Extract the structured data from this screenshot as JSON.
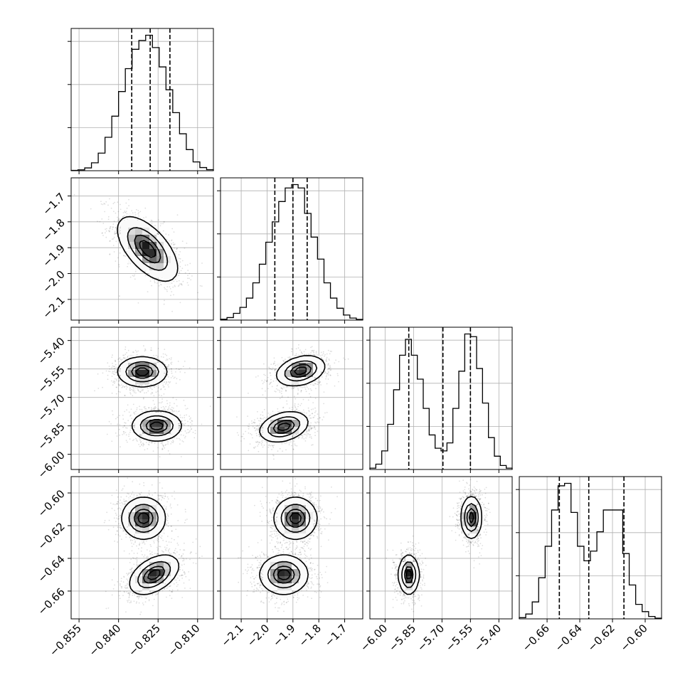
{
  "chart_data": {
    "type": "corner",
    "grid": true,
    "params": [
      {
        "range": [
          -0.858,
          -0.804
        ],
        "ticks": [
          -0.855,
          -0.84,
          -0.825,
          -0.81
        ],
        "tick_labels": [
          "−0.855",
          "−0.840",
          "−0.825",
          "−0.810"
        ],
        "quantiles": [
          -0.835,
          -0.828,
          -0.8205
        ],
        "hist": [
          0.2,
          0.5,
          1.6,
          4.5,
          10,
          19,
          31,
          45,
          58,
          69,
          74,
          77,
          70,
          59,
          46,
          33,
          21,
          12,
          5,
          1.8,
          0.6
        ]
      },
      {
        "range": [
          -2.18,
          -1.63
        ],
        "ticks": [
          -2.1,
          -2.0,
          -1.9,
          -1.8,
          -1.7
        ],
        "tick_labels": [
          "−2.1",
          "−2.0",
          "−1.9",
          "−1.8",
          "−1.7"
        ],
        "quantiles": [
          -1.97,
          -1.9,
          -1.845
        ],
        "hist": [
          0.5,
          1.5,
          4,
          7.5,
          13,
          22,
          33,
          46,
          58,
          70,
          78,
          80,
          78,
          63,
          49,
          36,
          22,
          13,
          7,
          3,
          1.2,
          0.4
        ]
      },
      {
        "range": [
          -6.08,
          -5.33
        ],
        "ticks": [
          -6.0,
          -5.85,
          -5.7,
          -5.55,
          -5.4
        ],
        "tick_labels": [
          "−6.00",
          "−5.85",
          "−5.70",
          "−5.55",
          "−5.40"
        ],
        "quantiles": [
          -5.875,
          -5.695,
          -5.55
        ],
        "hist": [
          0.5,
          2,
          7,
          17,
          30,
          43,
          49,
          43,
          34,
          23,
          13,
          8,
          7,
          10,
          23,
          37,
          51,
          50,
          38,
          25,
          12,
          5,
          1.5,
          0.5
        ]
      },
      {
        "range": [
          -0.677,
          -0.59
        ],
        "ticks": [
          -0.66,
          -0.64,
          -0.62,
          -0.6
        ],
        "tick_labels": [
          "−0.66",
          "−0.64",
          "−0.62",
          "−0.60"
        ],
        "quantiles": [
          -0.6525,
          -0.6345,
          -0.613
        ],
        "hist": [
          0.5,
          2,
          7,
          17,
          30,
          45,
          55,
          56,
          44,
          30,
          24,
          28,
          36,
          45,
          45,
          45,
          27,
          14,
          6,
          3,
          1,
          0.3
        ]
      }
    ],
    "pairs": [
      {
        "row": 1,
        "col": 0,
        "components": [
          {
            "mean": [
              -0.829,
              -1.905
            ],
            "sd": [
              0.0055,
              0.06
            ],
            "corr": -0.6,
            "w": 1.0
          }
        ]
      },
      {
        "row": 2,
        "col": 0,
        "components": [
          {
            "mean": [
              -0.831,
              -5.565
            ],
            "sd": [
              0.0045,
              0.038
            ],
            "corr": 0.0,
            "w": 0.5
          },
          {
            "mean": [
              -0.8255,
              -5.85
            ],
            "sd": [
              0.0045,
              0.038
            ],
            "corr": 0.0,
            "w": 0.5
          }
        ]
      },
      {
        "row": 2,
        "col": 1,
        "components": [
          {
            "mean": [
              -1.87,
              -5.56
            ],
            "sd": [
              0.045,
              0.038
            ],
            "corr": 0.3,
            "w": 0.5
          },
          {
            "mean": [
              -1.935,
              -5.855
            ],
            "sd": [
              0.045,
              0.038
            ],
            "corr": 0.3,
            "w": 0.5
          }
        ]
      },
      {
        "row": 3,
        "col": 0,
        "components": [
          {
            "mean": [
              -0.8305,
              -0.6155
            ],
            "sd": [
              0.004,
              0.0062
            ],
            "corr": 0.0,
            "w": 0.5
          },
          {
            "mean": [
              -0.8265,
              -0.65
            ],
            "sd": [
              0.0045,
              0.0058
            ],
            "corr": 0.45,
            "w": 0.5
          }
        ]
      },
      {
        "row": 3,
        "col": 1,
        "components": [
          {
            "mean": [
              -1.89,
              -0.6155
            ],
            "sd": [
              0.04,
              0.0062
            ],
            "corr": 0.0,
            "w": 0.5
          },
          {
            "mean": [
              -1.935,
              -0.65
            ],
            "sd": [
              0.045,
              0.0058
            ],
            "corr": 0.0,
            "w": 0.5
          }
        ]
      },
      {
        "row": 3,
        "col": 2,
        "components": [
          {
            "mean": [
              -5.545,
              -0.615
            ],
            "sd": [
              0.026,
              0.0062
            ],
            "corr": 0.0,
            "w": 0.5
          },
          {
            "mean": [
              -5.875,
              -0.65
            ],
            "sd": [
              0.026,
              0.0058
            ],
            "corr": 0.0,
            "w": 0.5
          }
        ]
      }
    ],
    "contour_levels": [
      0.118,
      0.393,
      0.675,
      0.865
    ]
  }
}
